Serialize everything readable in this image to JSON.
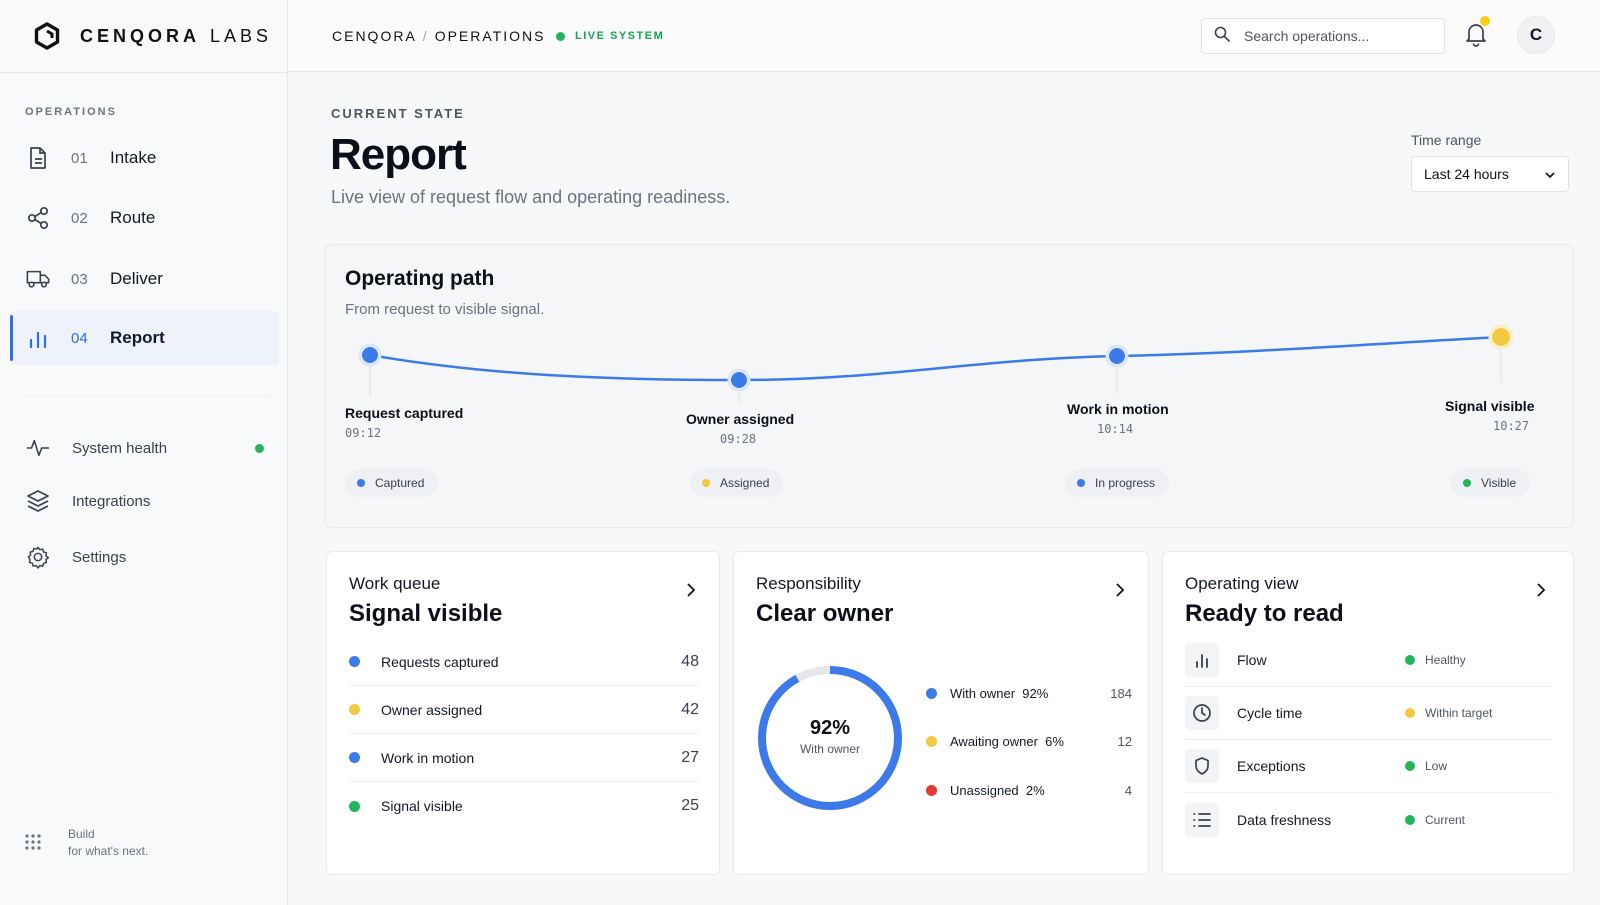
{
  "brand": {
    "name": "CENQORA",
    "suffix": "LABS"
  },
  "sidebar": {
    "section_label": "OPERATIONS",
    "items": [
      {
        "num": "01",
        "label": "Intake",
        "icon": "document-icon"
      },
      {
        "num": "02",
        "label": "Route",
        "icon": "share-nodes-icon"
      },
      {
        "num": "03",
        "label": "Deliver",
        "icon": "truck-icon"
      },
      {
        "num": "04",
        "label": "Report",
        "icon": "bar-chart-icon",
        "active": true
      }
    ],
    "utility": [
      {
        "label": "System health",
        "icon": "pulse-icon",
        "status_color": "#22b55b"
      },
      {
        "label": "Integrations",
        "icon": "layers-icon"
      },
      {
        "label": "Settings",
        "icon": "gear-icon"
      }
    ],
    "footer": {
      "line1": "Build",
      "line2": "for what's next."
    }
  },
  "topbar": {
    "crumb_root": "CENQORA",
    "crumb_sep": "/",
    "crumb_current": "OPERATIONS",
    "live_label": "LIVE SYSTEM",
    "search_placeholder": "Search operations...",
    "avatar_initial": "C"
  },
  "header": {
    "eyebrow": "CURRENT STATE",
    "title": "Report",
    "subtitle": "Live view of request flow and operating readiness.",
    "time_range_label": "Time range",
    "time_range_value": "Last 24 hours"
  },
  "path": {
    "title": "Operating path",
    "subtitle": "From request to visible signal.",
    "steps": [
      {
        "label": "Request captured",
        "time": "09:12",
        "status": "Captured",
        "color": "#3b7ae8"
      },
      {
        "label": "Owner assigned",
        "time": "09:28",
        "status": "Assigned",
        "color": "#f5c842"
      },
      {
        "label": "Work in motion",
        "time": "10:14",
        "status": "In progress",
        "color": "#3b7ae8"
      },
      {
        "label": "Signal visible",
        "time": "10:27",
        "status": "Visible",
        "color": "#22b55b"
      }
    ]
  },
  "queue": {
    "kicker": "Work queue",
    "title": "Signal visible",
    "rows": [
      {
        "label": "Requests captured",
        "value": "48",
        "color": "#3b7ae8"
      },
      {
        "label": "Owner assigned",
        "value": "42",
        "color": "#f5c842"
      },
      {
        "label": "Work in motion",
        "value": "27",
        "color": "#3b7ae8"
      },
      {
        "label": "Signal visible",
        "value": "25",
        "color": "#22b55b"
      }
    ]
  },
  "responsibility": {
    "kicker": "Responsibility",
    "title": "Clear owner",
    "donut_pct": "92%",
    "donut_label": "With owner",
    "donut_fraction": 0.92,
    "legend": [
      {
        "label": "With owner",
        "pct": "92%",
        "value": "184",
        "color": "#3b7ae8"
      },
      {
        "label": "Awaiting owner",
        "pct": "6%",
        "value": "12",
        "color": "#f5c842"
      },
      {
        "label": "Unassigned",
        "pct": "2%",
        "value": "4",
        "color": "#e53935"
      }
    ]
  },
  "opview": {
    "kicker": "Operating view",
    "title": "Ready to read",
    "rows": [
      {
        "label": "Flow",
        "status": "Healthy",
        "color": "#22b55b",
        "icon": "bar-chart-icon"
      },
      {
        "label": "Cycle time",
        "status": "Within target",
        "color": "#f5c842",
        "icon": "clock-icon"
      },
      {
        "label": "Exceptions",
        "status": "Low",
        "color": "#22b55b",
        "icon": "shield-icon"
      },
      {
        "label": "Data freshness",
        "status": "Current",
        "color": "#22b55b",
        "icon": "list-icon"
      }
    ]
  }
}
